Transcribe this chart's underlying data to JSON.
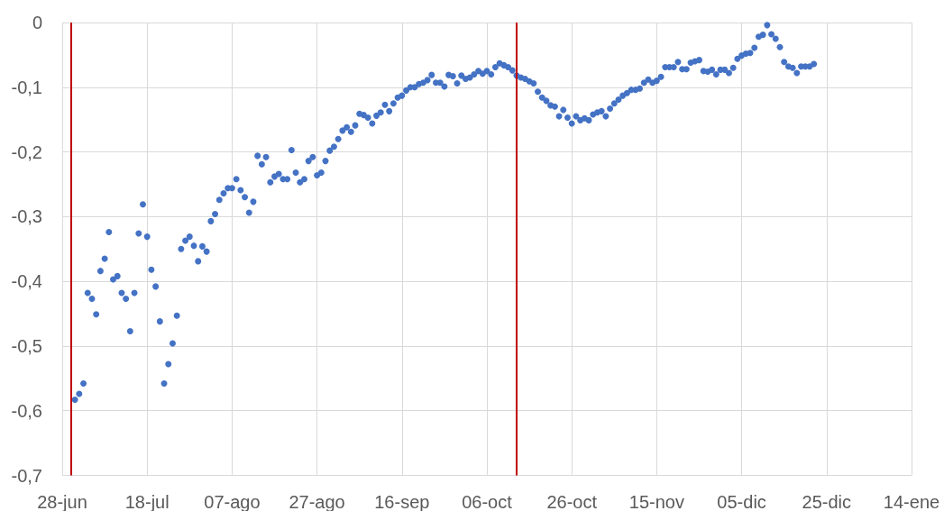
{
  "chart_data": {
    "type": "scatter",
    "color": "#4472c4",
    "marker": "circle",
    "grid": true,
    "categories": [
      "28-jun",
      null,
      null,
      null,
      null,
      null,
      null,
      null,
      null,
      null,
      null,
      null,
      null,
      null,
      null,
      null,
      null,
      null,
      null,
      null,
      "18-jul",
      null,
      null,
      null,
      null,
      null,
      null,
      null,
      null,
      null,
      null,
      null,
      null,
      null,
      null,
      null,
      null,
      null,
      null,
      null,
      "07-ago",
      null,
      null,
      null,
      null,
      null,
      null,
      null,
      null,
      null,
      null,
      null,
      null,
      null,
      null,
      null,
      null,
      null,
      null,
      null,
      "27-ago",
      null,
      null,
      null,
      null,
      null,
      null,
      null,
      null,
      null,
      null,
      null,
      null,
      null,
      null,
      null,
      null,
      null,
      null,
      null,
      "16-sep",
      null,
      null,
      null,
      null,
      null,
      null,
      null,
      null,
      null,
      null,
      null,
      null,
      null,
      null,
      null,
      null,
      null,
      null,
      null,
      "06-oct",
      null,
      null,
      null,
      null,
      null,
      null,
      null,
      null,
      null,
      null,
      null,
      null,
      null,
      null,
      null,
      null,
      null,
      null,
      null,
      "26-oct",
      null,
      null,
      null,
      null,
      null,
      null,
      null,
      null,
      null,
      null,
      null,
      null,
      null,
      null,
      null,
      null,
      null,
      null,
      null,
      "15-nov",
      null,
      null,
      null,
      null,
      null,
      null,
      null,
      null,
      null,
      null,
      null,
      null,
      null,
      null,
      null,
      null,
      null,
      null,
      null,
      "05-dic",
      null,
      null,
      null,
      null,
      null,
      null,
      null,
      null,
      null,
      null,
      null,
      null,
      null,
      null,
      null,
      null,
      null,
      null,
      null,
      "25-dic",
      null,
      null,
      null,
      null,
      null,
      null,
      null,
      null,
      null,
      null,
      null,
      null,
      null,
      null,
      null,
      null,
      null,
      null,
      null,
      "14-ene"
    ],
    "ylim": [
      -0.7,
      0
    ],
    "yticks": [
      {
        "value": -0.7,
        "label": "-0,7"
      },
      {
        "value": -0.6,
        "label": "-0,6"
      },
      {
        "value": -0.5,
        "label": "-0,5"
      },
      {
        "value": -0.4,
        "label": "-0,4"
      },
      {
        "value": -0.3,
        "label": "-0,3"
      },
      {
        "value": -0.2,
        "label": "-0,2"
      },
      {
        "value": -0.1,
        "label": "-0,1"
      },
      0
    ],
    "values": [
      null,
      null,
      null,
      -0.583,
      -0.574,
      -0.558,
      -0.418,
      -0.427,
      -0.451,
      -0.384,
      -0.365,
      -0.324,
      -0.397,
      -0.392,
      -0.418,
      -0.427,
      -0.477,
      -0.418,
      -0.326,
      -0.281,
      -0.331,
      -0.382,
      -0.408,
      -0.462,
      -0.558,
      -0.528,
      -0.496,
      -0.453,
      -0.35,
      -0.337,
      -0.331,
      -0.345,
      -0.369,
      -0.346,
      -0.354,
      -0.307,
      -0.296,
      -0.274,
      -0.264,
      -0.256,
      -0.256,
      -0.242,
      -0.259,
      -0.27,
      -0.294,
      -0.277,
      -0.206,
      -0.219,
      -0.208,
      -0.247,
      -0.238,
      -0.234,
      -0.242,
      -0.242,
      -0.197,
      -0.232,
      -0.247,
      -0.242,
      -0.214,
      -0.208,
      -0.236,
      -0.232,
      -0.214,
      -0.198,
      -0.192,
      -0.18,
      -0.167,
      -0.162,
      -0.169,
      -0.159,
      -0.141,
      -0.143,
      -0.147,
      -0.156,
      -0.144,
      -0.139,
      -0.127,
      -0.137,
      -0.125,
      -0.116,
      -0.113,
      -0.105,
      -0.1,
      -0.1,
      -0.095,
      -0.093,
      -0.089,
      -0.081,
      -0.093,
      -0.093,
      -0.099,
      -0.081,
      -0.083,
      -0.094,
      -0.082,
      -0.087,
      -0.085,
      -0.08,
      -0.075,
      -0.079,
      -0.075,
      -0.08,
      -0.069,
      -0.063,
      -0.066,
      -0.069,
      -0.074,
      -0.082,
      -0.085,
      -0.087,
      -0.091,
      -0.094,
      -0.107,
      -0.116,
      -0.121,
      -0.128,
      -0.13,
      -0.145,
      -0.135,
      -0.147,
      -0.156,
      -0.145,
      -0.151,
      -0.148,
      -0.151,
      -0.142,
      -0.139,
      -0.137,
      -0.145,
      -0.133,
      -0.125,
      -0.119,
      -0.113,
      -0.109,
      -0.104,
      -0.104,
      -0.102,
      -0.093,
      -0.088,
      -0.093,
      -0.09,
      -0.084,
      -0.069,
      -0.069,
      -0.069,
      -0.061,
      -0.072,
      -0.072,
      -0.062,
      -0.06,
      -0.058,
      -0.075,
      -0.076,
      -0.073,
      -0.08,
      -0.073,
      -0.073,
      -0.078,
      -0.07,
      -0.056,
      -0.051,
      -0.048,
      -0.047,
      -0.039,
      -0.022,
      -0.019,
      -0.004,
      -0.018,
      -0.025,
      -0.038,
      -0.061,
      -0.068,
      -0.07,
      -0.078,
      -0.068,
      -0.068,
      -0.068,
      -0.064,
      null,
      null,
      null,
      null,
      null,
      null,
      null,
      null,
      null,
      null,
      null,
      null,
      null,
      null,
      null,
      null,
      null,
      null,
      null,
      null,
      null,
      null,
      null
    ]
  }
}
